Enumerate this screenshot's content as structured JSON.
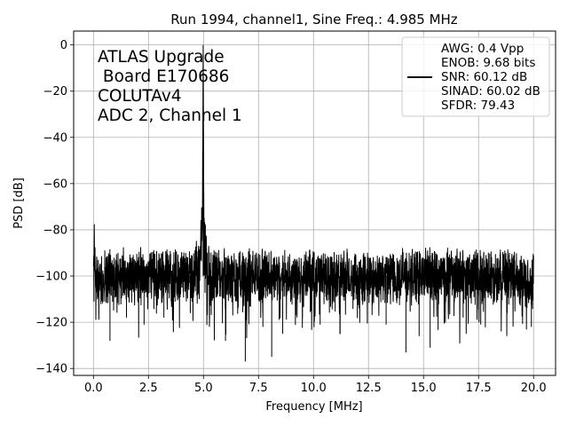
{
  "chart_data": {
    "type": "line",
    "title": "Run 1994, channel1, Sine Freq.: 4.985 MHz",
    "xlabel": "Frequency [MHz]",
    "ylabel": "PSD [dB]",
    "xlim": [
      -0.9,
      21.0
    ],
    "ylim": [
      -143,
      6
    ],
    "xticks": [
      0.0,
      2.5,
      5.0,
      7.5,
      10.0,
      12.5,
      15.0,
      17.5,
      20.0
    ],
    "xtick_labels": [
      "0.0",
      "2.5",
      "5.0",
      "7.5",
      "10.0",
      "12.5",
      "15.0",
      "17.5",
      "20.0"
    ],
    "yticks": [
      0,
      -20,
      -40,
      -60,
      -80,
      -100,
      -120,
      -140
    ],
    "ytick_labels": [
      "0",
      "−20",
      "−40",
      "−60",
      "−80",
      "−100",
      "−120",
      "−140"
    ],
    "grid": true,
    "legend_position": "top-right",
    "legend_lines": [
      "AWG: 0.4 Vpp",
      "ENOB: 9.68 bits",
      "SNR: 60.12 dB",
      "SINAD: 60.02 dB",
      "SFDR: 79.43"
    ],
    "annotation_lines": [
      "ATLAS Upgrade",
      " Board E170686",
      "COLUTAv4",
      "ADC 2, Channel 1"
    ],
    "line_color": "#000000",
    "series": [
      {
        "x": [
          0.0,
          0.02,
          0.1,
          0.5,
          1.0,
          2.0,
          3.0,
          4.0,
          4.6,
          4.85,
          4.9,
          4.95,
          4.985,
          5.02,
          5.08,
          5.15,
          5.4,
          6.0,
          7.0,
          8.0,
          9.0,
          10.0,
          11.0,
          12.0,
          13.0,
          14.0,
          15.0,
          16.0,
          17.0,
          18.0,
          19.0,
          19.97,
          20.0
        ],
        "values": [
          -100,
          -83,
          -100,
          -100,
          -100,
          -100,
          -100,
          -100,
          -100,
          -92,
          -80,
          -85,
          0,
          -80,
          -88,
          -95,
          -100,
          -100,
          -100,
          -100,
          -100,
          -100,
          -100,
          -100,
          -100,
          -100,
          -100,
          -100,
          -100,
          -100,
          -100,
          -102,
          -100
        ]
      }
    ],
    "deep_spurs": [
      {
        "x": 0.75,
        "y": -128
      },
      {
        "x": 1.5,
        "y": -118
      },
      {
        "x": 2.3,
        "y": -121
      },
      {
        "x": 3.2,
        "y": -118
      },
      {
        "x": 4.4,
        "y": -116
      },
      {
        "x": 6.0,
        "y": -128
      },
      {
        "x": 6.9,
        "y": -137
      },
      {
        "x": 7.7,
        "y": -122
      },
      {
        "x": 8.1,
        "y": -135
      },
      {
        "x": 8.6,
        "y": -125
      },
      {
        "x": 9.5,
        "y": -118
      },
      {
        "x": 10.3,
        "y": -121
      },
      {
        "x": 11.2,
        "y": -125
      },
      {
        "x": 12.1,
        "y": -120
      },
      {
        "x": 13.3,
        "y": -121
      },
      {
        "x": 14.2,
        "y": -133
      },
      {
        "x": 14.8,
        "y": -126
      },
      {
        "x": 15.3,
        "y": -131
      },
      {
        "x": 16.8,
        "y": -118
      },
      {
        "x": 17.6,
        "y": -121
      },
      {
        "x": 18.8,
        "y": -116
      },
      {
        "x": 19.9,
        "y": -122
      }
    ]
  }
}
